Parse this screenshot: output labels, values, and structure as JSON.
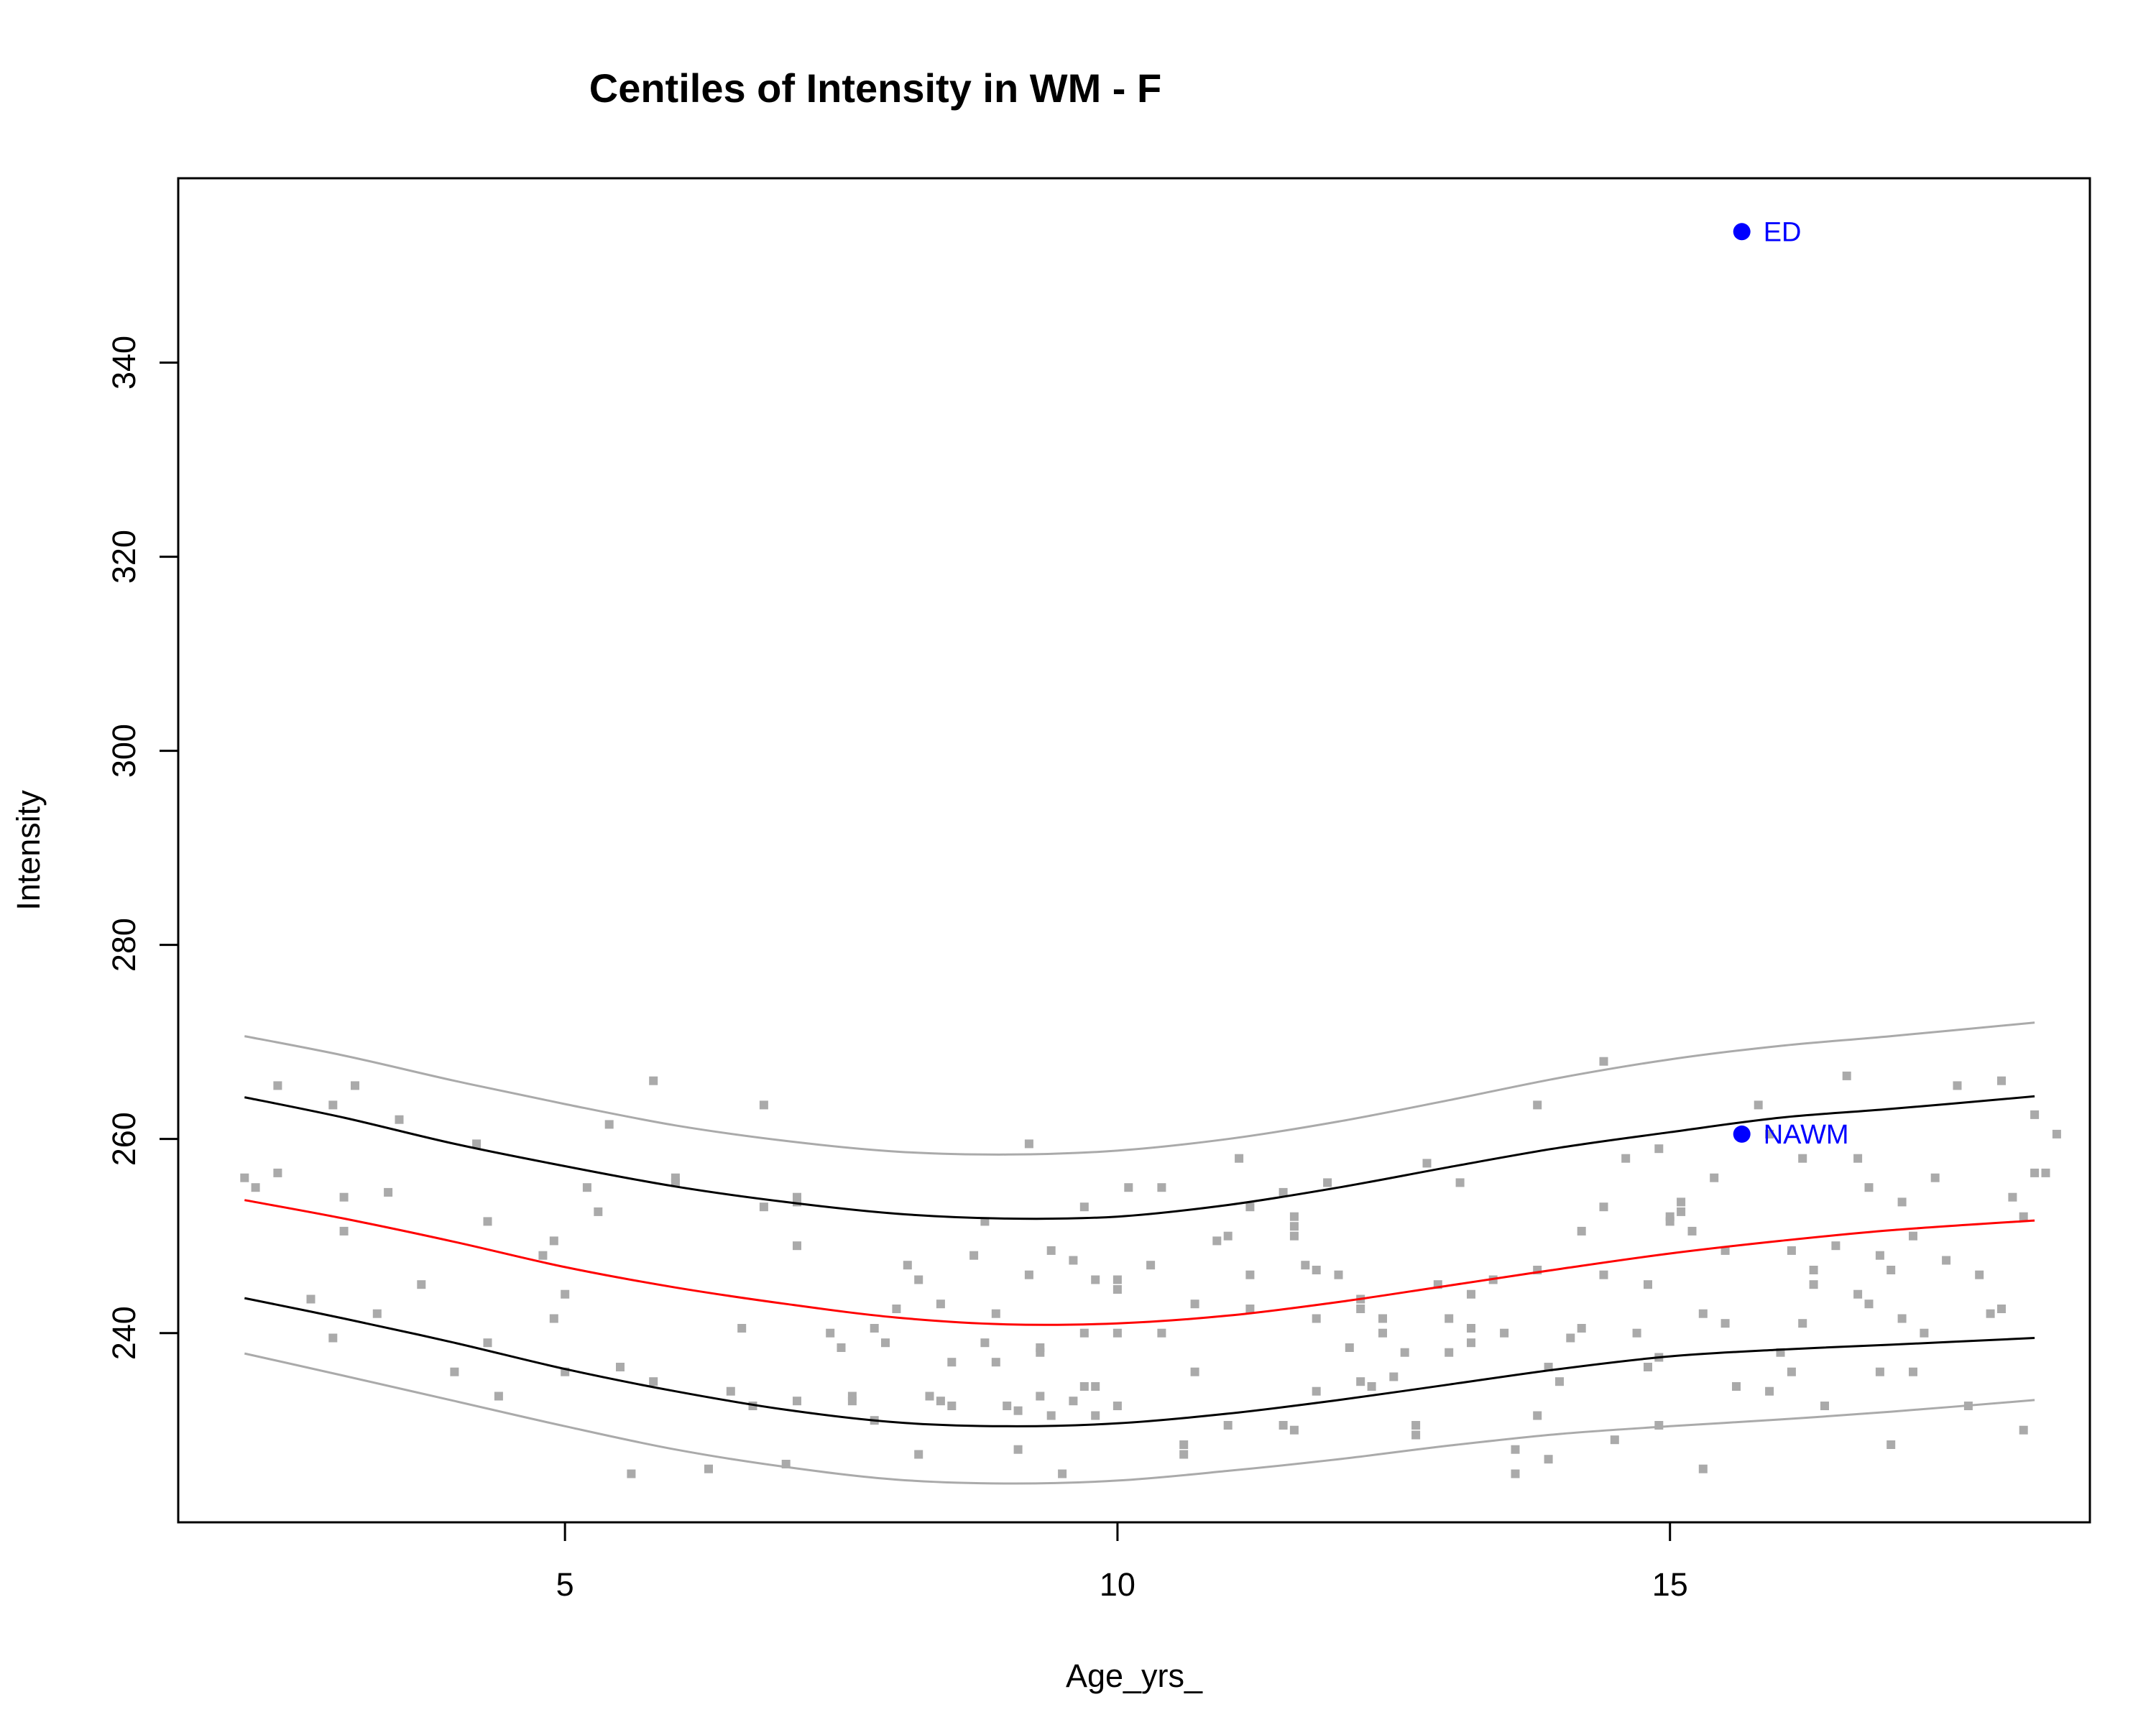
{
  "chart_data": {
    "type": "scatter",
    "title": "Centiles of Intensity in WM - F",
    "xlabel": "Age_yrs_",
    "ylabel": "Intensity",
    "xlim": [
      1.5,
      18.8
    ],
    "ylim": [
      220.5,
      359
    ],
    "x_ticks": [
      5,
      10,
      15
    ],
    "y_ticks": [
      240,
      260,
      280,
      300,
      320,
      340
    ],
    "grid": false,
    "colors": {
      "points": "#aaaaaa",
      "median": "#ff0000",
      "inner_centiles": "#000000",
      "outer_centiles": "#aaaaaa",
      "highlight": "#0000ff"
    },
    "centile_curves": {
      "x": [
        2.1,
        3,
        4,
        5,
        6,
        7,
        8,
        9,
        10,
        11,
        12,
        13,
        14,
        15,
        16,
        17,
        18.3
      ],
      "outer_upper": [
        270.6,
        268.6,
        266.0,
        263.6,
        261.4,
        259.8,
        258.7,
        258.4,
        258.8,
        260.0,
        261.8,
        264.0,
        266.3,
        268.2,
        269.6,
        270.6,
        272.0
      ],
      "inner_upper": [
        264.3,
        262.2,
        259.5,
        257.2,
        255.1,
        253.5,
        252.3,
        251.8,
        252.0,
        253.2,
        255.0,
        257.1,
        259.1,
        260.7,
        262.2,
        263.1,
        264.4
      ],
      "median": [
        253.7,
        251.8,
        249.4,
        246.8,
        244.7,
        243.0,
        241.6,
        240.9,
        241.0,
        241.8,
        243.2,
        244.9,
        246.6,
        248.2,
        249.5,
        250.6,
        251.6
      ],
      "inner_lower": [
        243.6,
        241.5,
        239.0,
        236.3,
        234.0,
        232.1,
        230.8,
        230.4,
        230.7,
        231.7,
        233.1,
        234.7,
        236.3,
        237.6,
        238.3,
        238.8,
        239.5
      ],
      "outer_lower": [
        237.9,
        235.6,
        233.0,
        230.4,
        228.0,
        226.2,
        224.9,
        224.5,
        224.8,
        225.8,
        227.0,
        228.4,
        229.6,
        230.4,
        231.1,
        231.9,
        233.1
      ]
    },
    "points": [
      [
        2.1,
        256
      ],
      [
        2.2,
        255
      ],
      [
        2.4,
        265.5
      ],
      [
        2.4,
        256.5
      ],
      [
        2.7,
        243.5
      ],
      [
        2.9,
        263.5
      ],
      [
        2.9,
        239.5
      ],
      [
        3.0,
        254
      ],
      [
        3.0,
        250.5
      ],
      [
        3.1,
        265.5
      ],
      [
        3.3,
        242
      ],
      [
        3.4,
        254.5
      ],
      [
        3.5,
        262
      ],
      [
        3.7,
        245
      ],
      [
        4.0,
        236
      ],
      [
        4.2,
        259.5
      ],
      [
        4.3,
        251.5
      ],
      [
        4.3,
        239
      ],
      [
        4.4,
        233.5
      ],
      [
        4.8,
        248
      ],
      [
        4.9,
        249.5
      ],
      [
        4.9,
        241.5
      ],
      [
        5.0,
        244
      ],
      [
        5.0,
        236
      ],
      [
        5.2,
        255
      ],
      [
        5.3,
        252.5
      ],
      [
        5.4,
        261.5
      ],
      [
        5.5,
        236.5
      ],
      [
        5.6,
        225.5
      ],
      [
        5.8,
        266
      ],
      [
        5.8,
        235
      ],
      [
        6.0,
        256
      ],
      [
        6.0,
        255.5
      ],
      [
        6.3,
        226
      ],
      [
        6.5,
        234
      ],
      [
        6.6,
        240.5
      ],
      [
        6.7,
        232.5
      ],
      [
        6.8,
        263.5
      ],
      [
        6.8,
        253
      ],
      [
        7.0,
        226.5
      ],
      [
        7.1,
        254
      ],
      [
        7.1,
        253.5
      ],
      [
        7.1,
        249
      ],
      [
        7.1,
        233
      ],
      [
        7.4,
        240
      ],
      [
        7.5,
        238.5
      ],
      [
        7.6,
        233.5
      ],
      [
        7.6,
        233
      ],
      [
        7.8,
        231
      ],
      [
        7.8,
        240.5
      ],
      [
        7.9,
        239
      ],
      [
        8.0,
        242.5
      ],
      [
        8.1,
        247
      ],
      [
        8.2,
        245.5
      ],
      [
        8.2,
        227.5
      ],
      [
        8.3,
        233.5
      ],
      [
        8.4,
        243
      ],
      [
        8.4,
        233
      ],
      [
        8.5,
        237
      ],
      [
        8.5,
        232.5
      ],
      [
        8.7,
        248
      ],
      [
        8.8,
        251.5
      ],
      [
        8.8,
        239
      ],
      [
        8.9,
        242
      ],
      [
        8.9,
        237
      ],
      [
        9.0,
        232.5
      ],
      [
        9.1,
        232
      ],
      [
        9.1,
        228
      ],
      [
        9.2,
        259.5
      ],
      [
        9.2,
        246
      ],
      [
        9.3,
        238.5
      ],
      [
        9.3,
        238
      ],
      [
        9.3,
        233.5
      ],
      [
        9.4,
        248.5
      ],
      [
        9.4,
        231.5
      ],
      [
        9.5,
        225.5
      ],
      [
        9.6,
        247.5
      ],
      [
        9.6,
        233
      ],
      [
        9.7,
        253
      ],
      [
        9.7,
        240
      ],
      [
        9.7,
        234.5
      ],
      [
        9.8,
        245.5
      ],
      [
        9.8,
        234.5
      ],
      [
        9.8,
        231.5
      ],
      [
        10.0,
        245.5
      ],
      [
        10.0,
        244.5
      ],
      [
        10.0,
        240
      ],
      [
        10.0,
        232.5
      ],
      [
        10.1,
        255
      ],
      [
        10.3,
        247
      ],
      [
        10.4,
        255
      ],
      [
        10.4,
        240
      ],
      [
        10.6,
        228.5
      ],
      [
        10.6,
        227.5
      ],
      [
        10.7,
        243
      ],
      [
        10.7,
        236
      ],
      [
        10.9,
        249.5
      ],
      [
        11.0,
        250
      ],
      [
        11.0,
        230.5
      ],
      [
        11.1,
        258
      ],
      [
        11.2,
        253
      ],
      [
        11.2,
        246
      ],
      [
        11.2,
        242.5
      ],
      [
        11.5,
        254.5
      ],
      [
        11.5,
        230.5
      ],
      [
        11.6,
        252
      ],
      [
        11.6,
        251
      ],
      [
        11.6,
        250
      ],
      [
        11.6,
        230
      ],
      [
        11.7,
        247
      ],
      [
        11.8,
        246.5
      ],
      [
        11.8,
        241.5
      ],
      [
        11.8,
        234
      ],
      [
        11.9,
        255.5
      ],
      [
        12.0,
        246
      ],
      [
        12.1,
        238.5
      ],
      [
        12.2,
        243.5
      ],
      [
        12.2,
        242.5
      ],
      [
        12.2,
        235
      ],
      [
        12.3,
        234.5
      ],
      [
        12.4,
        241.5
      ],
      [
        12.4,
        240
      ],
      [
        12.5,
        235.5
      ],
      [
        12.6,
        238
      ],
      [
        12.7,
        230.5
      ],
      [
        12.7,
        229.5
      ],
      [
        12.8,
        257.5
      ],
      [
        12.9,
        245
      ],
      [
        13.0,
        241.5
      ],
      [
        13.0,
        238
      ],
      [
        13.1,
        255.5
      ],
      [
        13.2,
        244
      ],
      [
        13.2,
        240.5
      ],
      [
        13.2,
        239
      ],
      [
        13.4,
        245.5
      ],
      [
        13.5,
        240
      ],
      [
        13.6,
        225.5
      ],
      [
        13.6,
        228
      ],
      [
        13.8,
        263.5
      ],
      [
        13.8,
        246.5
      ],
      [
        13.8,
        231.5
      ],
      [
        13.9,
        236.5
      ],
      [
        13.9,
        227
      ],
      [
        14.0,
        235
      ],
      [
        14.1,
        239.5
      ],
      [
        14.2,
        250.5
      ],
      [
        14.2,
        240.5
      ],
      [
        14.4,
        268
      ],
      [
        14.4,
        253
      ],
      [
        14.4,
        246
      ],
      [
        14.5,
        229
      ],
      [
        14.6,
        258
      ],
      [
        14.7,
        240
      ],
      [
        14.8,
        245
      ],
      [
        14.8,
        236.5
      ],
      [
        14.9,
        259
      ],
      [
        14.9,
        237.5
      ],
      [
        14.9,
        230.5
      ],
      [
        15.0,
        252
      ],
      [
        15.0,
        251.5
      ],
      [
        15.1,
        253.5
      ],
      [
        15.1,
        252.5
      ],
      [
        15.2,
        250.5
      ],
      [
        15.3,
        242
      ],
      [
        15.3,
        226
      ],
      [
        15.4,
        256
      ],
      [
        15.5,
        248.5
      ],
      [
        15.5,
        241
      ],
      [
        15.6,
        234.5
      ],
      [
        15.8,
        263.5
      ],
      [
        15.9,
        260.5
      ],
      [
        15.9,
        234
      ],
      [
        16.0,
        238
      ],
      [
        16.1,
        248.5
      ],
      [
        16.1,
        236
      ],
      [
        16.2,
        258
      ],
      [
        16.2,
        241
      ],
      [
        16.3,
        246.5
      ],
      [
        16.3,
        245
      ],
      [
        16.4,
        232.5
      ],
      [
        16.5,
        249
      ],
      [
        16.6,
        266.5
      ],
      [
        16.7,
        258
      ],
      [
        16.7,
        244
      ],
      [
        16.8,
        255
      ],
      [
        16.8,
        243
      ],
      [
        16.9,
        248
      ],
      [
        16.9,
        236
      ],
      [
        17.0,
        246.5
      ],
      [
        17.0,
        228.5
      ],
      [
        17.1,
        253.5
      ],
      [
        17.1,
        241.5
      ],
      [
        17.2,
        250
      ],
      [
        17.2,
        236
      ],
      [
        17.3,
        240
      ],
      [
        17.4,
        256
      ],
      [
        17.5,
        247.5
      ],
      [
        17.6,
        265.5
      ],
      [
        17.7,
        232.5
      ],
      [
        17.8,
        246
      ],
      [
        17.9,
        242
      ],
      [
        18.0,
        266
      ],
      [
        18.0,
        242.5
      ],
      [
        18.1,
        254
      ],
      [
        18.2,
        252
      ],
      [
        18.2,
        230
      ],
      [
        18.3,
        262.5
      ],
      [
        18.3,
        256.5
      ],
      [
        18.4,
        256.5
      ],
      [
        18.5,
        260.5
      ]
    ],
    "highlights": [
      {
        "label": "ED",
        "x": 15.65,
        "y": 353.5
      },
      {
        "label": "NAWM",
        "x": 15.65,
        "y": 260.5
      }
    ]
  }
}
